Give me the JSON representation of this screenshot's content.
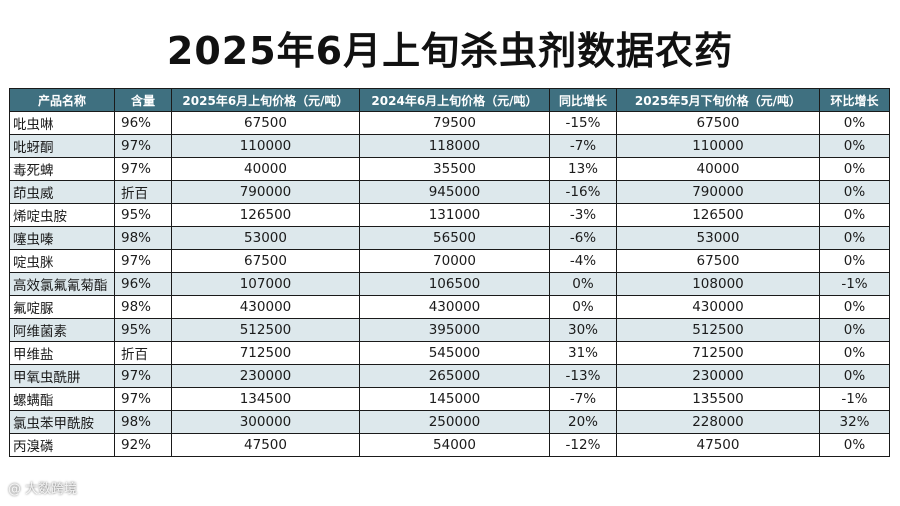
{
  "title": "2025年6月上旬杀虫剂数据农药",
  "table": {
    "headers": [
      "产品名称",
      "含量",
      "2025年6月上旬价格（元/吨）",
      "2024年6月上旬价格（元/吨）",
      "同比增长",
      "2025年5月下旬价格（元/吨）",
      "环比增长"
    ],
    "rows": [
      [
        "吡虫啉",
        "96%",
        "67500",
        "79500",
        "-15%",
        "67500",
        "0%"
      ],
      [
        "吡蚜酮",
        "97%",
        "110000",
        "118000",
        "-7%",
        "110000",
        "0%"
      ],
      [
        "毒死蜱",
        "97%",
        "40000",
        "35500",
        "13%",
        "40000",
        "0%"
      ],
      [
        "茚虫威",
        "折百",
        "790000",
        "945000",
        "-16%",
        "790000",
        "0%"
      ],
      [
        "烯啶虫胺",
        "95%",
        "126500",
        "131000",
        "-3%",
        "126500",
        "0%"
      ],
      [
        "噻虫嗪",
        "98%",
        "53000",
        "56500",
        "-6%",
        "53000",
        "0%"
      ],
      [
        "啶虫脒",
        "97%",
        "67500",
        "70000",
        "-4%",
        "67500",
        "0%"
      ],
      [
        "高效氯氟氰菊酯",
        "96%",
        "107000",
        "106500",
        "0%",
        "108000",
        "-1%"
      ],
      [
        "氟啶脲",
        "98%",
        "430000",
        "430000",
        "0%",
        "430000",
        "0%"
      ],
      [
        "阿维菌素",
        "95%",
        "512500",
        "395000",
        "30%",
        "512500",
        "0%"
      ],
      [
        "甲维盐",
        "折百",
        "712500",
        "545000",
        "31%",
        "712500",
        "0%"
      ],
      [
        "甲氧虫酰肼",
        "97%",
        "230000",
        "265000",
        "-13%",
        "230000",
        "0%"
      ],
      [
        "螺螨酯",
        "97%",
        "134500",
        "145000",
        "-7%",
        "135500",
        "-1%"
      ],
      [
        "氯虫苯甲酰胺",
        "98%",
        "300000",
        "250000",
        "20%",
        "228000",
        "32%"
      ],
      [
        "丙溴磷",
        "92%",
        "47500",
        "54000",
        "-12%",
        "47500",
        "0%"
      ]
    ]
  },
  "watermark": "@ 大数跨境"
}
